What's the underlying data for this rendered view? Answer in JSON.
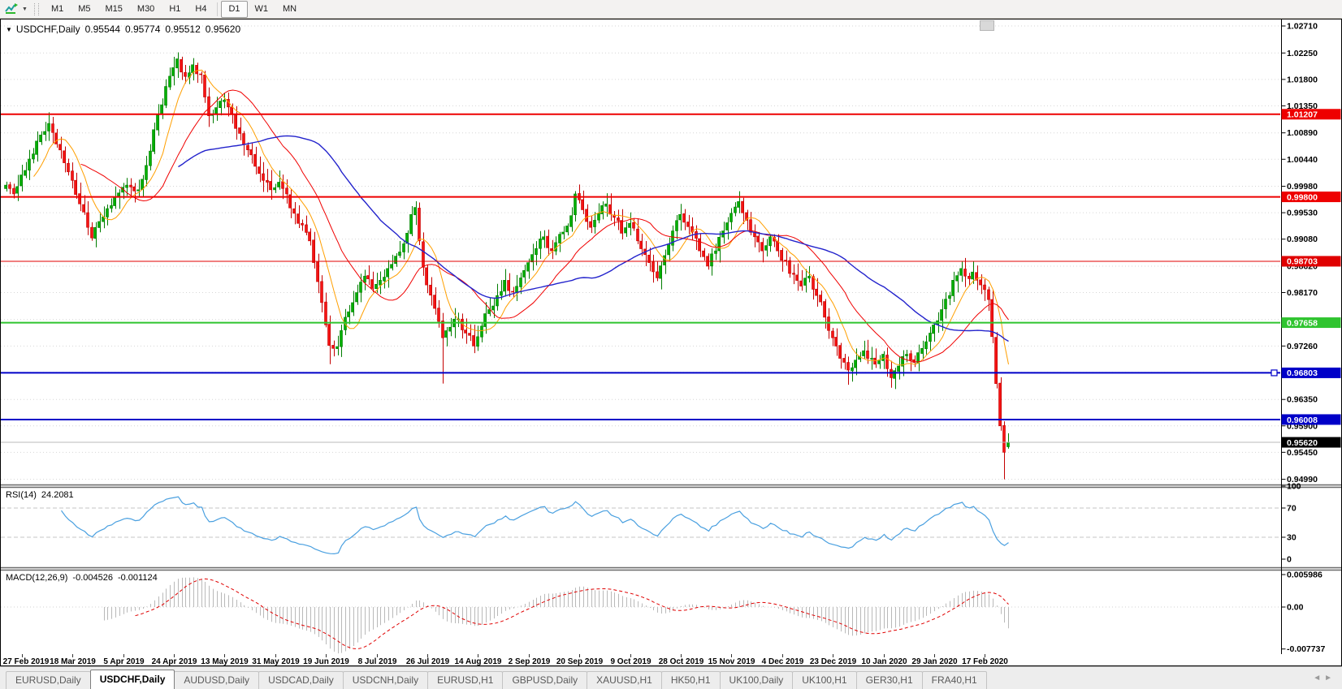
{
  "toolbar": {
    "timeframes": [
      "M1",
      "M5",
      "M15",
      "M30",
      "H1",
      "H4",
      "D1",
      "W1",
      "MN"
    ],
    "active_timeframe": "D1",
    "left_icon": "timeframes-toolbar-icon",
    "dropdown_caret": "▼"
  },
  "chart": {
    "symbol": "USDCHF,Daily",
    "open": "0.95544",
    "high": "0.95774",
    "low": "0.95512",
    "close": "0.95620",
    "title_caret": "▼"
  },
  "indicators": {
    "rsi": {
      "name": "RSI(14)",
      "value": "24.2081",
      "period": 14,
      "axis_labels": [
        [
          100,
          "100"
        ],
        [
          70,
          "70"
        ],
        [
          30,
          "30"
        ],
        [
          0,
          "0"
        ]
      ],
      "levels": [
        70,
        30
      ],
      "range": [
        0,
        100
      ],
      "line_color": "#4aa0e0",
      "level_color": "#c4c4c4"
    },
    "macd": {
      "name": "MACD(12,26,9)",
      "main_value": "-0.004526",
      "signal_value": "-0.001124",
      "fast": 12,
      "slow": 26,
      "signal": 9,
      "axis_labels": [
        [
          0.005986,
          "0.005986"
        ],
        [
          0,
          "0.00"
        ],
        [
          -0.007737,
          "-0.007737"
        ]
      ],
      "range": [
        -0.007737,
        0.005986
      ],
      "histogram_color": "#b9b9b9",
      "signal_color": "#e00000"
    }
  },
  "tabs": {
    "items": [
      "EURUSD,Daily",
      "USDCHF,Daily",
      "AUDUSD,Daily",
      "USDCAD,Daily",
      "USDCNH,Daily",
      "EURUSD,H1",
      "GBPUSD,Daily",
      "XAUUSD,H1",
      "HK50,H1",
      "UK100,Daily",
      "UK100,H1",
      "GER30,H1",
      "FRA40,H1"
    ],
    "active_index": 1,
    "nav_left": "◄",
    "nav_right": "►"
  },
  "chart_data": {
    "type": "candlestick",
    "symbol": "USDCHF",
    "timeframe": "Daily",
    "bars": 258,
    "ylim": [
      0.9499,
      1.0271
    ],
    "up_color": "#00b000",
    "up_stroke": "#007d00",
    "down_color": "#f51414",
    "down_stroke": "#c40000",
    "grid_color": "#d6d6d6",
    "y_ticks": [
      {
        "price": 1.0271,
        "label": "1.02710"
      },
      {
        "price": 1.0225,
        "label": "1.02250"
      },
      {
        "price": 1.018,
        "label": "1.01800"
      },
      {
        "price": 1.0135,
        "label": "1.01350"
      },
      {
        "price": 1.0089,
        "label": "1.00890"
      },
      {
        "price": 1.0044,
        "label": "1.00440"
      },
      {
        "price": 0.9998,
        "label": "0.99980"
      },
      {
        "price": 0.9953,
        "label": "0.99530"
      },
      {
        "price": 0.9908,
        "label": "0.99080"
      },
      {
        "price": 0.9862,
        "label": "0.98620"
      },
      {
        "price": 0.9817,
        "label": "0.98170"
      },
      {
        "price": 0.9771,
        "label": null
      },
      {
        "price": 0.9726,
        "label": "0.97260"
      },
      {
        "price": 0.9681,
        "label": null
      },
      {
        "price": 0.9635,
        "label": "0.96350"
      },
      {
        "price": 0.959,
        "label": "0.95900"
      },
      {
        "price": 0.9545,
        "label": "0.95450"
      },
      {
        "price": 0.9499,
        "label": "0.94990"
      }
    ],
    "x_labels": [
      {
        "index": 4,
        "label": "27 Feb 2019"
      },
      {
        "index": 17,
        "label": "18 Mar 2019"
      },
      {
        "index": 30,
        "label": "5 Apr 2019"
      },
      {
        "index": 43,
        "label": "24 Apr 2019"
      },
      {
        "index": 56,
        "label": "13 May 2019"
      },
      {
        "index": 69,
        "label": "31 May 2019"
      },
      {
        "index": 82,
        "label": "19 Jun 2019"
      },
      {
        "index": 95,
        "label": "8 Jul 2019"
      },
      {
        "index": 108,
        "label": "26 Jul 2019"
      },
      {
        "index": 121,
        "label": "14 Aug 2019"
      },
      {
        "index": 134,
        "label": "2 Sep 2019"
      },
      {
        "index": 147,
        "label": "20 Sep 2019"
      },
      {
        "index": 160,
        "label": "9 Oct 2019"
      },
      {
        "index": 173,
        "label": "28 Oct 2019"
      },
      {
        "index": 186,
        "label": "15 Nov 2019"
      },
      {
        "index": 199,
        "label": "4 Dec 2019"
      },
      {
        "index": 212,
        "label": "23 Dec 2019"
      },
      {
        "index": 225,
        "label": "10 Jan 2020"
      },
      {
        "index": 238,
        "label": "29 Jan 2020"
      },
      {
        "index": 251,
        "label": "17 Feb 2020"
      }
    ],
    "price_close_anchors": [
      [
        0,
        1.0
      ],
      [
        2,
        0.9985
      ],
      [
        5,
        1.0025
      ],
      [
        8,
        1.0075
      ],
      [
        11,
        1.0105
      ],
      [
        13,
        1.007
      ],
      [
        15,
        1.0038
      ],
      [
        17,
        1.0008
      ],
      [
        19,
        0.9968
      ],
      [
        21,
        0.9928
      ],
      [
        22,
        0.991
      ],
      [
        24,
        0.9938
      ],
      [
        26,
        0.996
      ],
      [
        28,
        0.998
      ],
      [
        31,
        1.0
      ],
      [
        33,
        0.999
      ],
      [
        35,
        1.001
      ],
      [
        37,
        1.0058
      ],
      [
        39,
        1.012
      ],
      [
        41,
        1.0168
      ],
      [
        43,
        1.02
      ],
      [
        44,
        1.0215
      ],
      [
        46,
        1.0185
      ],
      [
        48,
        1.0205
      ],
      [
        50,
        1.0188
      ],
      [
        51,
        1.015
      ],
      [
        52,
        1.0118
      ],
      [
        54,
        1.0132
      ],
      [
        56,
        1.0145
      ],
      [
        58,
        1.012
      ],
      [
        60,
        1.0088
      ],
      [
        62,
        1.006
      ],
      [
        64,
        1.0032
      ],
      [
        66,
        1.0008
      ],
      [
        68,
        0.9992
      ],
      [
        70,
        1.0005
      ],
      [
        72,
        0.9985
      ],
      [
        74,
        0.9952
      ],
      [
        76,
        0.9932
      ],
      [
        78,
        0.9905
      ],
      [
        79,
        0.9868
      ],
      [
        81,
        0.98
      ],
      [
        82,
        0.9762
      ],
      [
        83,
        0.9727
      ],
      [
        85,
        0.9725
      ],
      [
        87,
        0.9775
      ],
      [
        90,
        0.9817
      ],
      [
        92,
        0.9845
      ],
      [
        94,
        0.9824
      ],
      [
        96,
        0.9838
      ],
      [
        98,
        0.9858
      ],
      [
        100,
        0.9879
      ],
      [
        102,
        0.99
      ],
      [
        104,
        0.995
      ],
      [
        105,
        0.9962
      ],
      [
        106,
        0.9905
      ],
      [
        107,
        0.986
      ],
      [
        108,
        0.983
      ],
      [
        110,
        0.979
      ],
      [
        112,
        0.974
      ],
      [
        114,
        0.9758
      ],
      [
        116,
        0.9772
      ],
      [
        118,
        0.9748
      ],
      [
        120,
        0.9726
      ],
      [
        122,
        0.976
      ],
      [
        124,
        0.9788
      ],
      [
        126,
        0.9812
      ],
      [
        128,
        0.9838
      ],
      [
        130,
        0.9818
      ],
      [
        132,
        0.9842
      ],
      [
        134,
        0.9868
      ],
      [
        136,
        0.9892
      ],
      [
        138,
        0.9912
      ],
      [
        140,
        0.9888
      ],
      [
        143,
        0.992
      ],
      [
        145,
        0.9948
      ],
      [
        146,
        0.9985
      ],
      [
        148,
        0.9958
      ],
      [
        150,
        0.9928
      ],
      [
        152,
        0.9952
      ],
      [
        154,
        0.9968
      ],
      [
        156,
        0.9945
      ],
      [
        158,
        0.9918
      ],
      [
        160,
        0.9935
      ],
      [
        162,
        0.9905
      ],
      [
        165,
        0.9868
      ],
      [
        167,
        0.9842
      ],
      [
        169,
        0.988
      ],
      [
        171,
        0.9922
      ],
      [
        173,
        0.995
      ],
      [
        176,
        0.992
      ],
      [
        178,
        0.9888
      ],
      [
        180,
        0.9862
      ],
      [
        182,
        0.9888
      ],
      [
        184,
        0.9922
      ],
      [
        186,
        0.9952
      ],
      [
        188,
        0.9972
      ],
      [
        190,
        0.994
      ],
      [
        192,
        0.9912
      ],
      [
        194,
        0.9888
      ],
      [
        196,
        0.9912
      ],
      [
        198,
        0.9888
      ],
      [
        199,
        0.9872
      ],
      [
        202,
        0.9848
      ],
      [
        204,
        0.9828
      ],
      [
        206,
        0.9845
      ],
      [
        208,
        0.9812
      ],
      [
        210,
        0.9775
      ],
      [
        212,
        0.974
      ],
      [
        214,
        0.9705
      ],
      [
        216,
        0.9685
      ],
      [
        218,
        0.9702
      ],
      [
        220,
        0.9718
      ],
      [
        223,
        0.9695
      ],
      [
        225,
        0.9712
      ],
      [
        227,
        0.9672
      ],
      [
        229,
        0.9692
      ],
      [
        231,
        0.9712
      ],
      [
        233,
        0.9698
      ],
      [
        235,
        0.9722
      ],
      [
        237,
        0.9748
      ],
      [
        238,
        0.9762
      ],
      [
        240,
        0.9788
      ],
      [
        242,
        0.9812
      ],
      [
        243,
        0.9838
      ],
      [
        245,
        0.9858
      ],
      [
        246,
        0.9845
      ],
      [
        248,
        0.9852
      ],
      [
        249,
        0.9838
      ],
      [
        251,
        0.9822
      ],
      [
        252,
        0.9805
      ],
      [
        253,
        0.9742
      ],
      [
        254,
        0.9662
      ],
      [
        255,
        0.959
      ],
      [
        256,
        0.9545
      ],
      [
        257,
        0.9562
      ]
    ],
    "wick_overrides": {
      "11": {
        "high": 1.0124
      },
      "44": {
        "high": 1.0226
      },
      "83": {
        "low": 0.9695
      },
      "112": {
        "low": 0.9662
      },
      "216": {
        "low": 0.966
      },
      "227": {
        "low": 0.9655
      },
      "245": {
        "high": 0.987
      },
      "256": {
        "low": 0.9499
      }
    },
    "last_bar": {
      "open": 0.95544,
      "high": 0.95774,
      "low": 0.95512,
      "close": 0.9562
    },
    "moving_averages": [
      {
        "name": "fast",
        "period": 8,
        "color": "#ff9f00",
        "width": 1
      },
      {
        "name": "medium",
        "period": 20,
        "color": "#f00000",
        "width": 1
      },
      {
        "name": "slow",
        "period": 45,
        "color": "#2323cc",
        "width": 1.4
      }
    ],
    "horizontal_lines": [
      {
        "price": 1.01207,
        "label": "1.01207",
        "color": "#ee0000",
        "width": 2,
        "handle": false
      },
      {
        "price": 0.998,
        "label": "0.99800",
        "color": "#ee0000",
        "width": 2,
        "handle": false
      },
      {
        "price": 0.98703,
        "label": "0.98703",
        "color": "#e00000",
        "width": 1,
        "handle": false
      },
      {
        "price": 0.97658,
        "label": "0.97658",
        "color": "#2fc42f",
        "width": 2,
        "handle": false
      },
      {
        "price": 0.96803,
        "label": "0.96803",
        "color": "#0000c8",
        "width": 2,
        "handle": true
      },
      {
        "price": 0.96008,
        "label": "0.96008",
        "color": "#0000c8",
        "width": 2,
        "handle": false
      }
    ],
    "bid": {
      "price": 0.9562,
      "label": "0.95620",
      "line_color": "#b8b8b8",
      "label_bg": "#000000"
    }
  }
}
